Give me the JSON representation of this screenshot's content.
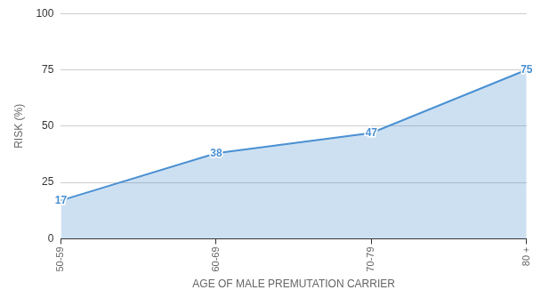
{
  "chart_data": {
    "type": "area",
    "categories": [
      "50-59",
      "60-69",
      "70-79",
      "80 +"
    ],
    "values": [
      17,
      38,
      47,
      75
    ],
    "color": "#4a90d2",
    "x_label": "AGE OF MALE PREMUTATION CARRIER",
    "y_label": "RISK (%)",
    "ylim": [
      0,
      100
    ],
    "yticks": [
      0,
      25,
      50,
      75,
      100
    ],
    "grid": true,
    "data_labels": true
  }
}
